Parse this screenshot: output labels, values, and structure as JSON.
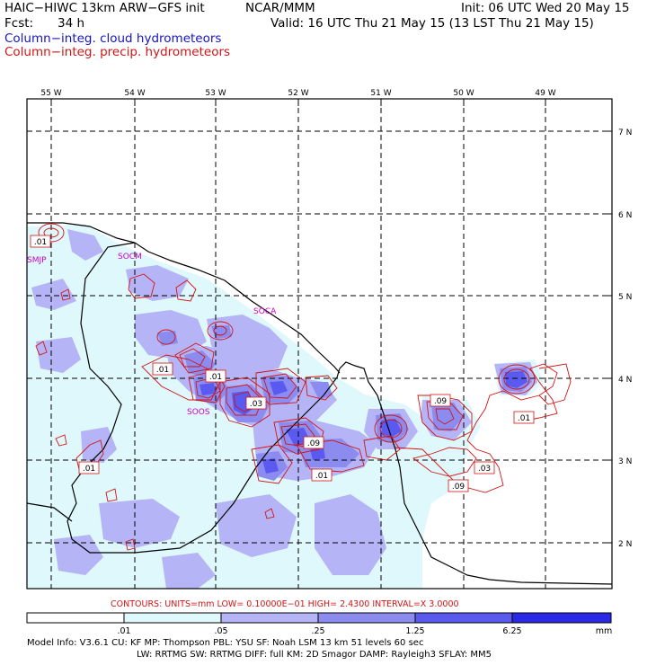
{
  "header": {
    "model": "HAIC−HIWC 13km ARW−GFS init",
    "org": "NCAR/MMM",
    "init": "Init: 06 UTC Wed 20 May 15",
    "fcst_label": "Fcst:",
    "fcst_value": "34 h",
    "valid": "Valid: 16 UTC Thu 21 May 15 (13 LST Thu 21 May 15)",
    "field1": "Column−integ. cloud hydrometeors",
    "field2": "Column−integ. precip. hydrometeors"
  },
  "colors": {
    "cloud_field": "#1414c8",
    "precip_field": "#d21414",
    "station": "#c800c8",
    "shade_levels": [
      "#ffffff",
      "#dff8fb",
      "#b4b4f6",
      "#8c8cf0",
      "#5a5af0",
      "#2a2ae6"
    ]
  },
  "grid": {
    "lon_labels": [
      "55 W",
      "54 W",
      "53 W",
      "52 W",
      "51 W",
      "50 W",
      "49 W"
    ],
    "lat_labels": [
      "7 N",
      "6 N",
      "5 N",
      "4 N",
      "3 N",
      "2 N"
    ]
  },
  "stations": [
    "SMJP",
    "SOCM",
    "SOCA",
    "SOOS"
  ],
  "contour_labels": [
    ".01",
    ".01",
    ".01",
    ".03",
    ".09",
    ".01",
    ".01",
    ".09",
    ".03",
    ".09",
    ".01"
  ],
  "contour_info": {
    "text": "CONTOURS:  UNITS=mm  LOW= 0.10000E−01  HIGH=  2.4300       INTERVAL=X  3.0000"
  },
  "colorbar": {
    "levels": [
      ".01",
      ".05",
      ".25",
      "1.25",
      "6.25"
    ],
    "units": "mm"
  },
  "model_info": {
    "line1": "Model Info: V3.6.1     CU: KF       MP: Thompson       PBL: YSU          SF: Noah LSM        13 km    51 levels    60 sec",
    "line2": "LW: RRTMG    SW: RRTMG   DIFF: full     KM: 2D Smagor DAMP: Rayleigh3   SFLAY: MM5"
  }
}
